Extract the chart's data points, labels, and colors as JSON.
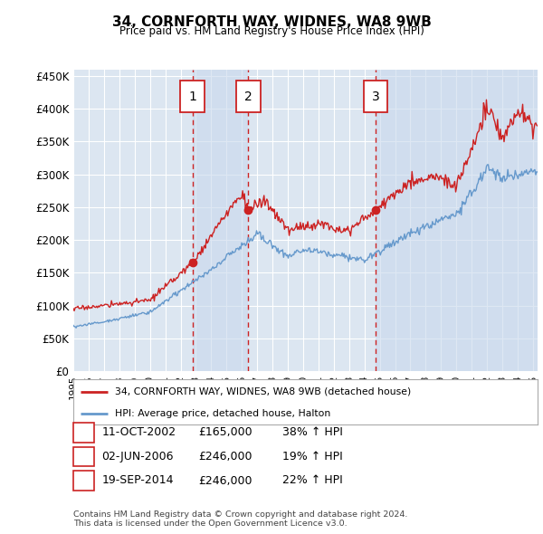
{
  "title": "34, CORNFORTH WAY, WIDNES, WA8 9WB",
  "subtitle": "Price paid vs. HM Land Registry's House Price Index (HPI)",
  "ylabel_ticks": [
    "£0",
    "£50K",
    "£100K",
    "£150K",
    "£200K",
    "£250K",
    "£300K",
    "£350K",
    "£400K",
    "£450K"
  ],
  "ylabel_values": [
    0,
    50000,
    100000,
    150000,
    200000,
    250000,
    300000,
    350000,
    400000,
    450000
  ],
  "ylim": [
    0,
    460000
  ],
  "xlim_start": 1995.0,
  "xlim_end": 2025.3,
  "background_color": "#ffffff",
  "plot_bg_color": "#dce6f1",
  "grid_color": "#ffffff",
  "shade_color": "#c8d8ec",
  "sale_dates": [
    2002.78,
    2006.42,
    2014.72
  ],
  "sale_prices": [
    165000,
    246000,
    246000
  ],
  "sale_labels": [
    "1",
    "2",
    "3"
  ],
  "legend_sale_label": "34, CORNFORTH WAY, WIDNES, WA8 9WB (detached house)",
  "legend_hpi_label": "HPI: Average price, detached house, Halton",
  "table_rows": [
    [
      "1",
      "11-OCT-2002",
      "£165,000",
      "38% ↑ HPI"
    ],
    [
      "2",
      "02-JUN-2006",
      "£246,000",
      "19% ↑ HPI"
    ],
    [
      "3",
      "19-SEP-2014",
      "£246,000",
      "22% ↑ HPI"
    ]
  ],
  "footnote": "Contains HM Land Registry data © Crown copyright and database right 2024.\nThis data is licensed under the Open Government Licence v3.0.",
  "hpi_color": "#6699cc",
  "sale_line_color": "#cc2222",
  "sale_dot_color": "#cc2222",
  "vline_color": "#cc2222",
  "marker_box_color": "#cc2222"
}
